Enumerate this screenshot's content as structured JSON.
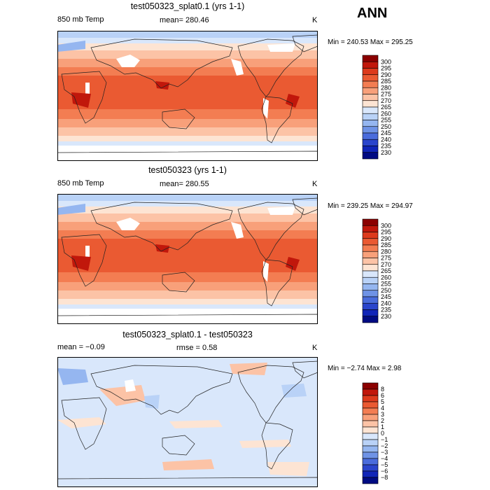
{
  "season": "ANN",
  "panels": [
    {
      "title": "test050323_splat0.1 (yrs 1-1)",
      "left_label": "850 mb Temp",
      "center_label": "mean= 280.46",
      "unit": "K",
      "minmax": "Min = 240.53 Max = 295.25"
    },
    {
      "title": "test050323 (yrs 1-1)",
      "left_label": "850 mb Temp",
      "center_label": "mean= 280.55",
      "unit": "K",
      "minmax": "Min = 239.25 Max = 294.97"
    },
    {
      "title": "test050323_splat0.1 - test050323",
      "left_label": "mean =  −0.09",
      "center_label": "rmse =   0.58",
      "unit": "K",
      "minmax": "Min =  −2.74 Max =   2.98"
    }
  ],
  "chart_data": [
    {
      "type": "heatmap",
      "title": "test050323_splat0.1 (yrs 1-1)",
      "variable": "850 mb Temp",
      "units": "K",
      "mean": 280.46,
      "min": 240.53,
      "max": 295.25,
      "colorbar_levels": [
        300,
        295,
        290,
        285,
        280,
        275,
        270,
        265,
        260,
        255,
        250,
        245,
        240,
        235,
        230
      ],
      "colorbar_colors": [
        "#8b0000",
        "#c1170b",
        "#dd3a1c",
        "#ea5a32",
        "#f37d52",
        "#f8a07a",
        "#fcc3a6",
        "#fde4d3",
        "#d9e7fb",
        "#b9d2f7",
        "#95b6f0",
        "#6f93e6",
        "#4a6cdc",
        "#2a45cc",
        "#1025b8",
        "#000b82"
      ]
    },
    {
      "type": "heatmap",
      "title": "test050323 (yrs 1-1)",
      "variable": "850 mb Temp",
      "units": "K",
      "mean": 280.55,
      "min": 239.25,
      "max": 294.97,
      "colorbar_levels": [
        300,
        295,
        290,
        285,
        280,
        275,
        270,
        265,
        260,
        255,
        250,
        245,
        240,
        235,
        230
      ],
      "colorbar_colors": [
        "#8b0000",
        "#c1170b",
        "#dd3a1c",
        "#ea5a32",
        "#f37d52",
        "#f8a07a",
        "#fcc3a6",
        "#fde4d3",
        "#d9e7fb",
        "#b9d2f7",
        "#95b6f0",
        "#6f93e6",
        "#4a6cdc",
        "#2a45cc",
        "#1025b8",
        "#000b82"
      ]
    },
    {
      "type": "heatmap",
      "title": "test050323_splat0.1 - test050323",
      "units": "K",
      "mean": -0.09,
      "rmse": 0.58,
      "min": -2.74,
      "max": 2.98,
      "colorbar_levels": [
        "8",
        "6",
        "5",
        "4",
        "3",
        "2",
        "1",
        "0",
        "−1",
        "−2",
        "−3",
        "−4",
        "−5",
        "−6",
        "−8"
      ],
      "colorbar_colors": [
        "#8b0000",
        "#c1170b",
        "#dd3a1c",
        "#ea5a32",
        "#f37d52",
        "#f8a07a",
        "#fcc3a6",
        "#fde4d3",
        "#d9e7fb",
        "#b9d2f7",
        "#95b6f0",
        "#6f93e6",
        "#4a6cdc",
        "#2a45cc",
        "#1025b8",
        "#000b82"
      ]
    }
  ]
}
